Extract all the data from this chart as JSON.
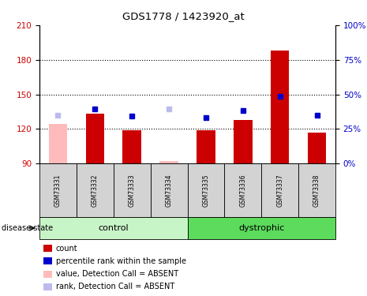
{
  "title": "GDS1778 / 1423920_at",
  "samples": [
    "GSM73331",
    "GSM73332",
    "GSM73333",
    "GSM73334",
    "GSM73335",
    "GSM73336",
    "GSM73337",
    "GSM73338"
  ],
  "bar_values": [
    124,
    133,
    119,
    92,
    119,
    128,
    188,
    117
  ],
  "bar_absent": [
    true,
    false,
    false,
    true,
    false,
    false,
    false,
    false
  ],
  "rank_values": [
    132,
    137,
    131,
    137,
    130,
    136,
    148,
    132
  ],
  "rank_absent": [
    true,
    false,
    false,
    true,
    false,
    false,
    false,
    false
  ],
  "ylim_left": [
    90,
    210
  ],
  "ylim_right": [
    0,
    100
  ],
  "yticks_left": [
    90,
    120,
    150,
    180,
    210
  ],
  "yticks_right": [
    0,
    25,
    50,
    75,
    100
  ],
  "ytick_labels_right": [
    "0%",
    "25%",
    "50%",
    "75%",
    "100%"
  ],
  "groups": [
    {
      "label": "control",
      "indices": [
        0,
        1,
        2,
        3
      ]
    },
    {
      "label": "dystrophic",
      "indices": [
        4,
        5,
        6,
        7
      ]
    }
  ],
  "group_colors_light": [
    "#c8f5c8",
    "#5cdb5c"
  ],
  "color_bar_present": "#cc0000",
  "color_bar_absent": "#ffbbbb",
  "color_rank_present": "#0000cc",
  "color_rank_absent": "#bbbbee",
  "bg_bar": "#d3d3d3",
  "bg_plot": "#ffffff",
  "left_label_color": "#cc0000",
  "right_label_color": "#0000cc",
  "disease_state_label": "disease state",
  "legend_items": [
    {
      "label": "count",
      "color": "#cc0000"
    },
    {
      "label": "percentile rank within the sample",
      "color": "#0000cc"
    },
    {
      "label": "value, Detection Call = ABSENT",
      "color": "#ffbbbb"
    },
    {
      "label": "rank, Detection Call = ABSENT",
      "color": "#bbbbee"
    }
  ]
}
